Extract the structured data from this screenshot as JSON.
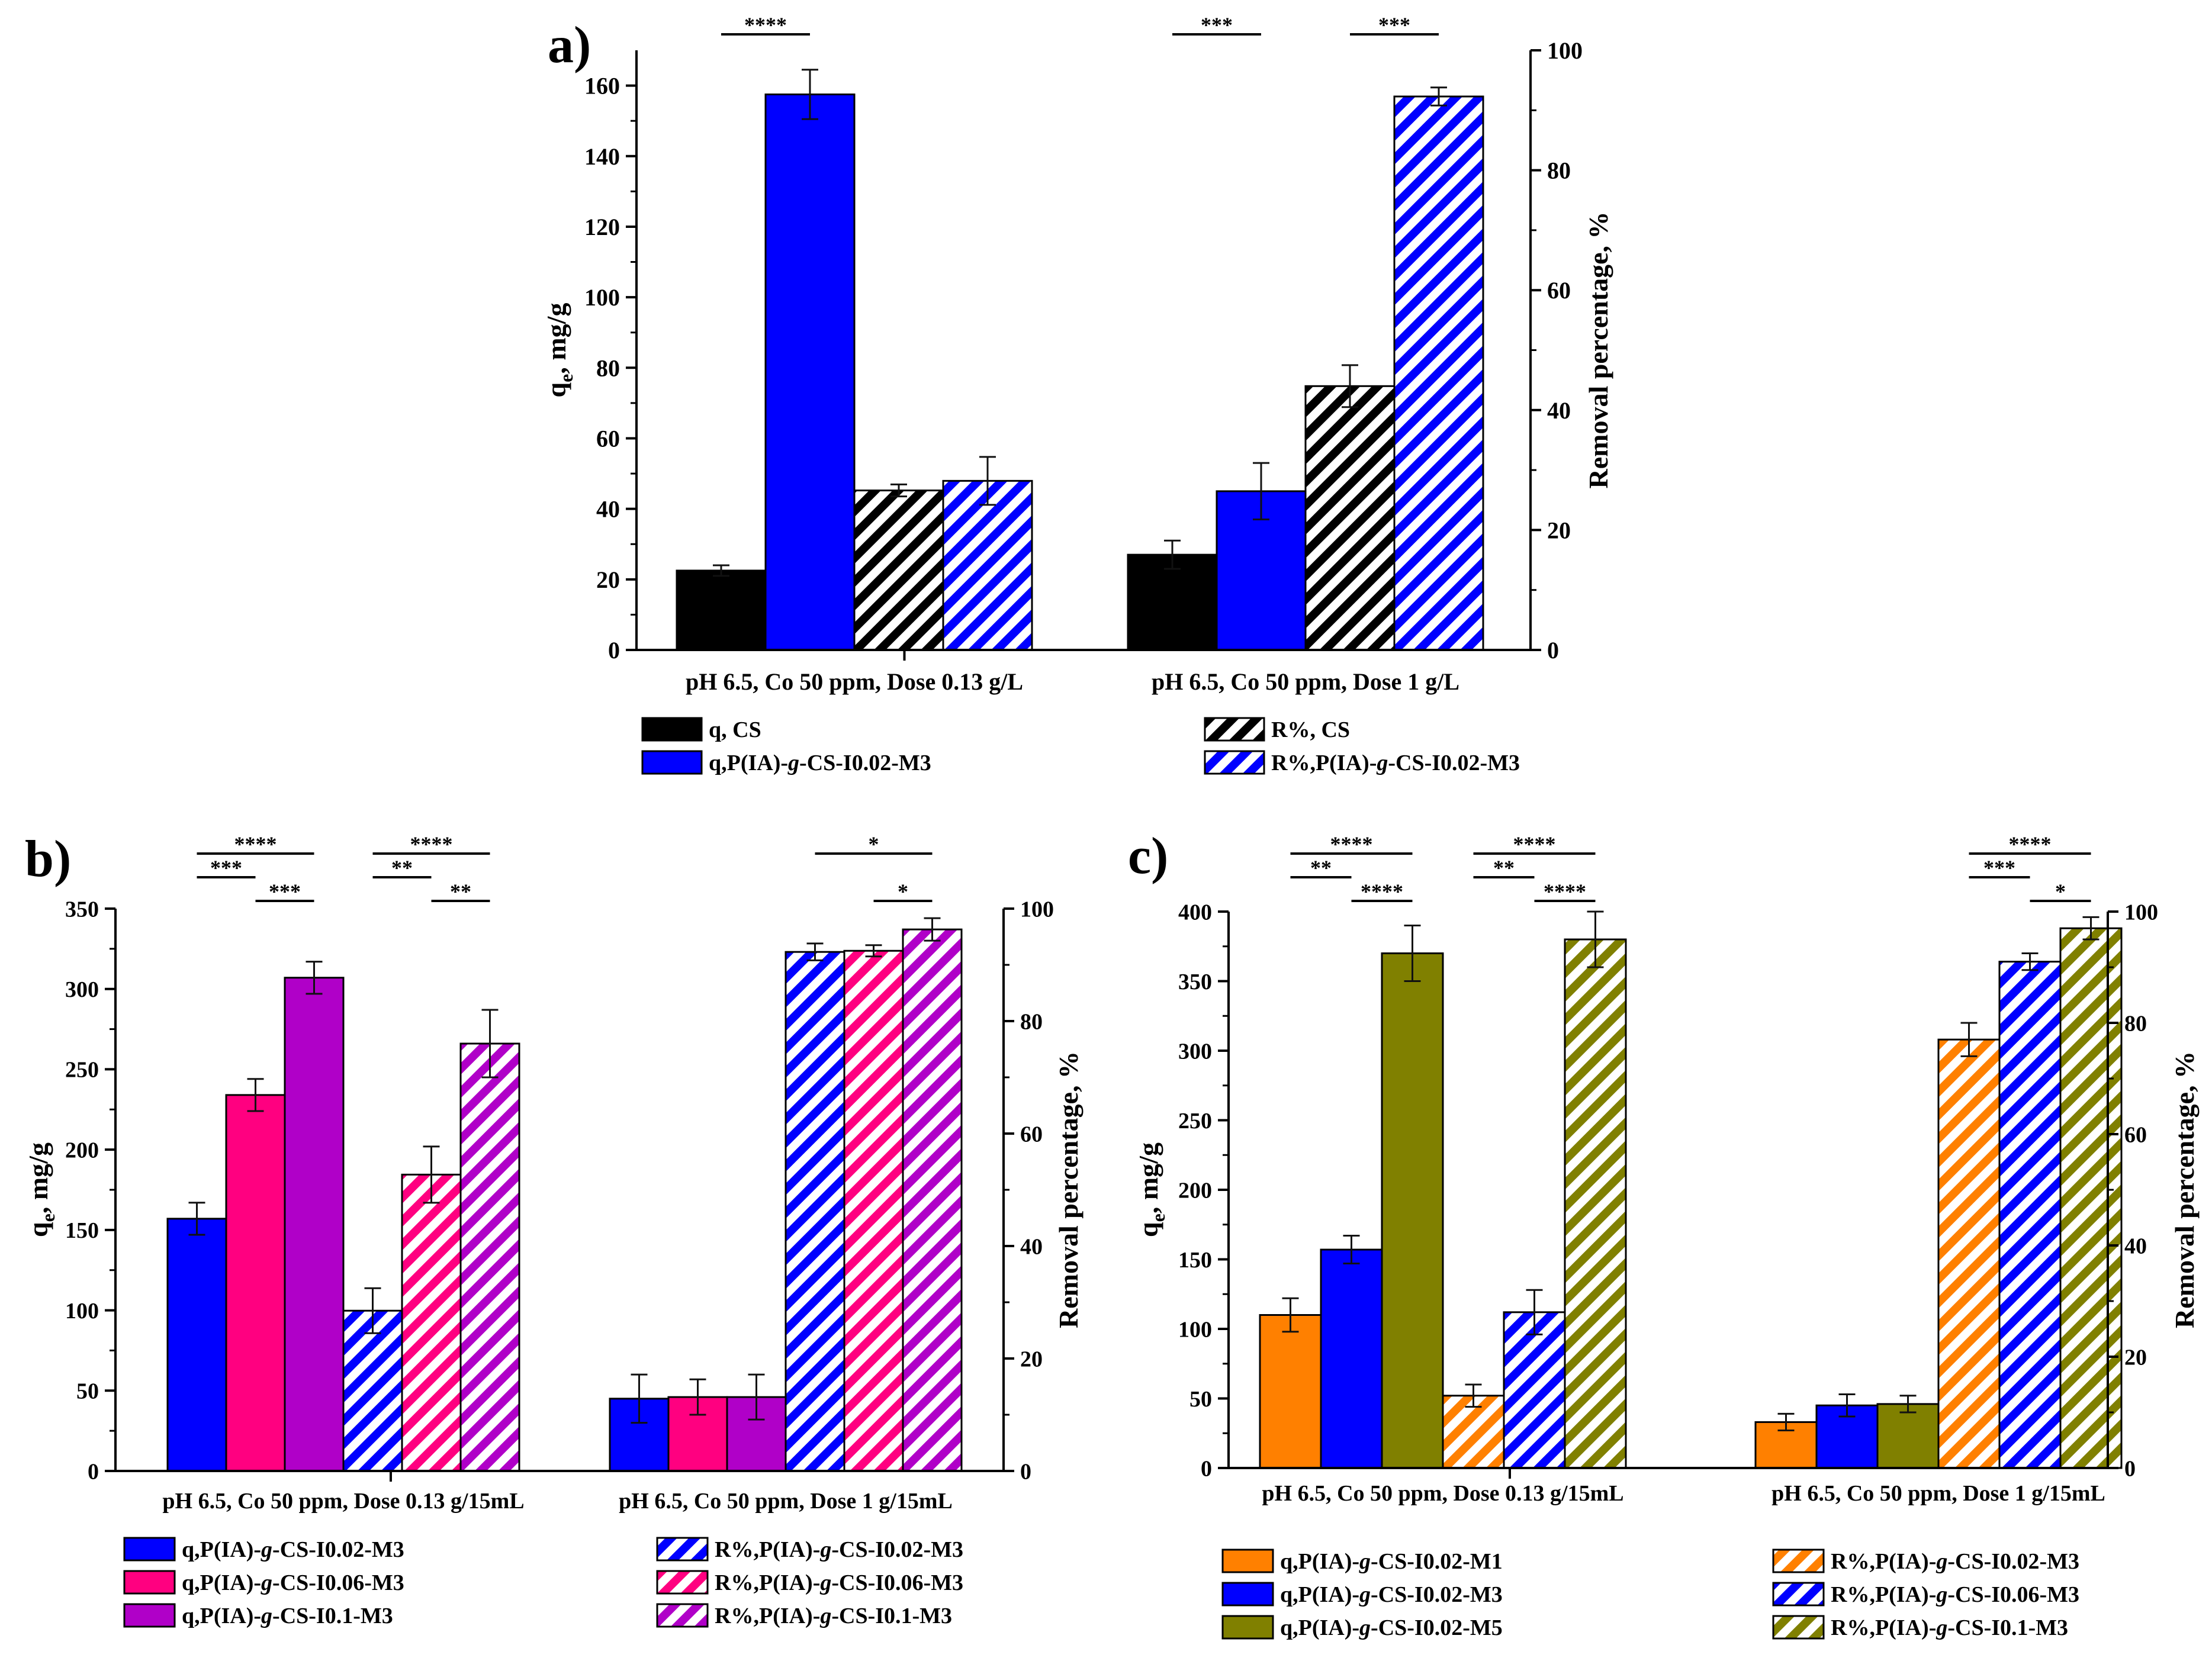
{
  "chart_data": [
    {
      "type": "bar",
      "panel": "a)",
      "ylabel_main": "q",
      "ylabel_sub": "e",
      "ylabel_rest": ", mg/g",
      "y2label": "Removal percentage, %",
      "ylim": [
        0,
        170
      ],
      "y2lim": [
        0,
        100
      ],
      "yticks": [
        "0",
        "20",
        "40",
        "60",
        "80",
        "100",
        "120",
        "140",
        "160"
      ],
      "y2ticks": [
        "0",
        "20",
        "40",
        "60",
        "80",
        "100"
      ],
      "categories": [
        "pH 6.5, Co 50 ppm, Dose 0.13 g/L",
        "pH 6.5, Co 50 ppm, Dose 1 g/L"
      ],
      "series": [
        {
          "name": "q, CS",
          "pre": "q, CS",
          "ital": "",
          "post": "",
          "axis": "left",
          "color": "#000000",
          "hatch": false,
          "values": [
            22.5,
            27
          ],
          "errors": [
            1.5,
            4
          ]
        },
        {
          "name": "q,P(IA)-g-CS-I0.02-M3",
          "pre": "q,P(IA)-",
          "ital": "g",
          "post": "-CS-I0.02-M3",
          "axis": "left",
          "color": "#0000ff",
          "hatch": false,
          "values": [
            157.5,
            45
          ],
          "errors": [
            7,
            8
          ]
        },
        {
          "name": "R%, CS",
          "pre": "R%, CS",
          "ital": "",
          "post": "",
          "axis": "right",
          "color": "#000000",
          "hatch": true,
          "values": [
            26.6,
            44
          ],
          "errors": [
            1,
            3.5
          ]
        },
        {
          "name": "R%,P(IA)-g-CS-I0.02-M3",
          "pre": "R%,P(IA)-",
          "ital": "g",
          "post": "-CS-I0.02-M3",
          "axis": "right",
          "color": "#0000ff",
          "hatch": true,
          "values": [
            28.2,
            92.3
          ],
          "errors": [
            4,
            1.5
          ]
        }
      ],
      "significance": [
        {
          "label": "****",
          "from": [
            0,
            0
          ],
          "to": [
            0,
            1
          ],
          "level": 0
        },
        {
          "label": "***",
          "from": [
            1,
            0
          ],
          "to": [
            1,
            1
          ],
          "level": 0
        },
        {
          "label": "***",
          "from": [
            1,
            2
          ],
          "to": [
            1,
            3
          ],
          "level": 0
        }
      ]
    },
    {
      "type": "bar",
      "panel": "b)",
      "ylabel_main": "q",
      "ylabel_sub": "e",
      "ylabel_rest": ", mg/g",
      "y2label": "Removal percentage, %",
      "ylim": [
        0,
        350
      ],
      "y2lim": [
        0,
        100
      ],
      "yticks": [
        "0",
        "50",
        "100",
        "150",
        "200",
        "250",
        "300",
        "350"
      ],
      "y2ticks": [
        "0",
        "20",
        "40",
        "60",
        "80",
        "100"
      ],
      "categories": [
        "pH 6.5, Co 50 ppm, Dose 0.13 g/15mL",
        "pH 6.5, Co 50 ppm, Dose 1 g/15mL"
      ],
      "series": [
        {
          "name": "q,P(IA)-g-CS-I0.02-M3",
          "pre": "q,P(IA)-",
          "ital": "g",
          "post": "-CS-I0.02-M3",
          "axis": "left",
          "color": "#0000ff",
          "hatch": false,
          "values": [
            157,
            45
          ],
          "errors": [
            10,
            15
          ]
        },
        {
          "name": "q,P(IA)-g-CS-I0.06-M3",
          "pre": "q,P(IA)-",
          "ital": "g",
          "post": "-CS-I0.06-M3",
          "axis": "left",
          "color": "#ff0080",
          "hatch": false,
          "values": [
            234,
            46
          ],
          "errors": [
            10,
            11
          ]
        },
        {
          "name": "q,P(IA)-g-CS-I0.1-M3",
          "pre": "q,P(IA)-",
          "ital": "g",
          "post": "-CS-I0.1-M3",
          "axis": "left",
          "color": "#b000c8",
          "hatch": false,
          "values": [
            307,
            46
          ],
          "errors": [
            10,
            14
          ]
        },
        {
          "name": "R%,P(IA)-g-CS-I0.02-M3",
          "pre": "R%,P(IA)-",
          "ital": "g",
          "post": "-CS-I0.02-M3",
          "axis": "right",
          "color": "#0000ff",
          "hatch": true,
          "values": [
            28.5,
            92.3
          ],
          "errors": [
            4,
            1.5
          ]
        },
        {
          "name": "R%,P(IA)-g-CS-I0.06-M3",
          "pre": "R%,P(IA)-",
          "ital": "g",
          "post": "-CS-I0.06-M3",
          "axis": "right",
          "color": "#ff0080",
          "hatch": true,
          "values": [
            52.7,
            92.5
          ],
          "errors": [
            5,
            1
          ]
        },
        {
          "name": "R%,P(IA)-g-CS-I0.1-M3",
          "pre": "R%,P(IA)-",
          "ital": "g",
          "post": "-CS-I0.1-M3",
          "axis": "right",
          "color": "#b000c8",
          "hatch": true,
          "values": [
            76,
            96.3
          ],
          "errors": [
            6,
            2
          ]
        }
      ],
      "significance": [
        {
          "label": "****",
          "from": [
            0,
            0
          ],
          "to": [
            0,
            2
          ],
          "level": 2
        },
        {
          "label": "***",
          "from": [
            0,
            0
          ],
          "to": [
            0,
            1
          ],
          "level": 1
        },
        {
          "label": "***",
          "from": [
            0,
            1
          ],
          "to": [
            0,
            2
          ],
          "level": 0
        },
        {
          "label": "****",
          "from": [
            0,
            3
          ],
          "to": [
            0,
            5
          ],
          "level": 2
        },
        {
          "label": "**",
          "from": [
            0,
            3
          ],
          "to": [
            0,
            4
          ],
          "level": 1
        },
        {
          "label": "**",
          "from": [
            0,
            4
          ],
          "to": [
            0,
            5
          ],
          "level": 0
        },
        {
          "label": "*",
          "from": [
            1,
            3
          ],
          "to": [
            1,
            5
          ],
          "level": 2
        },
        {
          "label": "*",
          "from": [
            1,
            4
          ],
          "to": [
            1,
            5
          ],
          "level": 0
        }
      ]
    },
    {
      "type": "bar",
      "panel": "c)",
      "ylabel_main": "q",
      "ylabel_sub": "e",
      "ylabel_rest": ", mg/g",
      "y2label": "Removal percentage, %",
      "ylim": [
        0,
        400
      ],
      "y2lim": [
        0,
        100
      ],
      "yticks": [
        "0",
        "50",
        "100",
        "150",
        "200",
        "250",
        "300",
        "350",
        "400"
      ],
      "y2ticks": [
        "0",
        "20",
        "40",
        "60",
        "80",
        "100"
      ],
      "categories": [
        "pH 6.5, Co 50 ppm, Dose 0.13 g/15mL",
        "pH 6.5, Co 50 ppm, Dose 1 g/15mL"
      ],
      "series": [
        {
          "name": "q,P(IA)-g-CS-I0.02-M1",
          "pre": "q,P(IA)-",
          "ital": "g",
          "post": "-CS-I0.02-M1",
          "axis": "left",
          "color": "#ff8000",
          "hatch": false,
          "values": [
            110,
            33
          ],
          "errors": [
            12,
            6
          ]
        },
        {
          "name": "q,P(IA)-g-CS-I0.02-M3",
          "pre": "q,P(IA)-",
          "ital": "g",
          "post": "-CS-I0.02-M3",
          "axis": "left",
          "color": "#0000ff",
          "hatch": false,
          "values": [
            157,
            45
          ],
          "errors": [
            10,
            8
          ]
        },
        {
          "name": "q,P(IA)-g-CS-I0.02-M5",
          "pre": "q,P(IA)-",
          "ital": "g",
          "post": "-CS-I0.02-M5",
          "axis": "left",
          "color": "#808000",
          "hatch": false,
          "values": [
            370,
            46
          ],
          "errors": [
            20,
            6
          ]
        },
        {
          "name": "R%,P(IA)-g-CS-I0.02-M3",
          "pre": "R%,P(IA)-",
          "ital": "g",
          "post": "-CS-I0.02-M3",
          "axis": "right",
          "color": "#ff8000",
          "hatch": true,
          "values": [
            13,
            77
          ],
          "errors": [
            2,
            3
          ]
        },
        {
          "name": "R%,P(IA)-g-CS-I0.06-M3",
          "pre": "R%,P(IA)-",
          "ital": "g",
          "post": "-CS-I0.06-M3",
          "axis": "right",
          "color": "#0000ff",
          "hatch": true,
          "values": [
            28,
            91
          ],
          "errors": [
            4,
            1.5
          ]
        },
        {
          "name": "R%,P(IA)-g-CS-I0.1-M3",
          "pre": "R%,P(IA)-",
          "ital": "g",
          "post": "-CS-I0.1-M3",
          "axis": "right",
          "color": "#808000",
          "hatch": true,
          "values": [
            95,
            97
          ],
          "errors": [
            5,
            2
          ]
        }
      ],
      "significance": [
        {
          "label": "****",
          "from": [
            0,
            0
          ],
          "to": [
            0,
            2
          ],
          "level": 2
        },
        {
          "label": "**",
          "from": [
            0,
            0
          ],
          "to": [
            0,
            1
          ],
          "level": 1
        },
        {
          "label": "****",
          "from": [
            0,
            1
          ],
          "to": [
            0,
            2
          ],
          "level": 0
        },
        {
          "label": "****",
          "from": [
            0,
            3
          ],
          "to": [
            0,
            5
          ],
          "level": 2
        },
        {
          "label": "**",
          "from": [
            0,
            3
          ],
          "to": [
            0,
            4
          ],
          "level": 1
        },
        {
          "label": "****",
          "from": [
            0,
            4
          ],
          "to": [
            0,
            5
          ],
          "level": 0
        },
        {
          "label": "****",
          "from": [
            1,
            3
          ],
          "to": [
            1,
            5
          ],
          "level": 2
        },
        {
          "label": "***",
          "from": [
            1,
            3
          ],
          "to": [
            1,
            4
          ],
          "level": 1
        },
        {
          "label": "*",
          "from": [
            1,
            4
          ],
          "to": [
            1,
            5
          ],
          "level": 0
        }
      ]
    }
  ]
}
